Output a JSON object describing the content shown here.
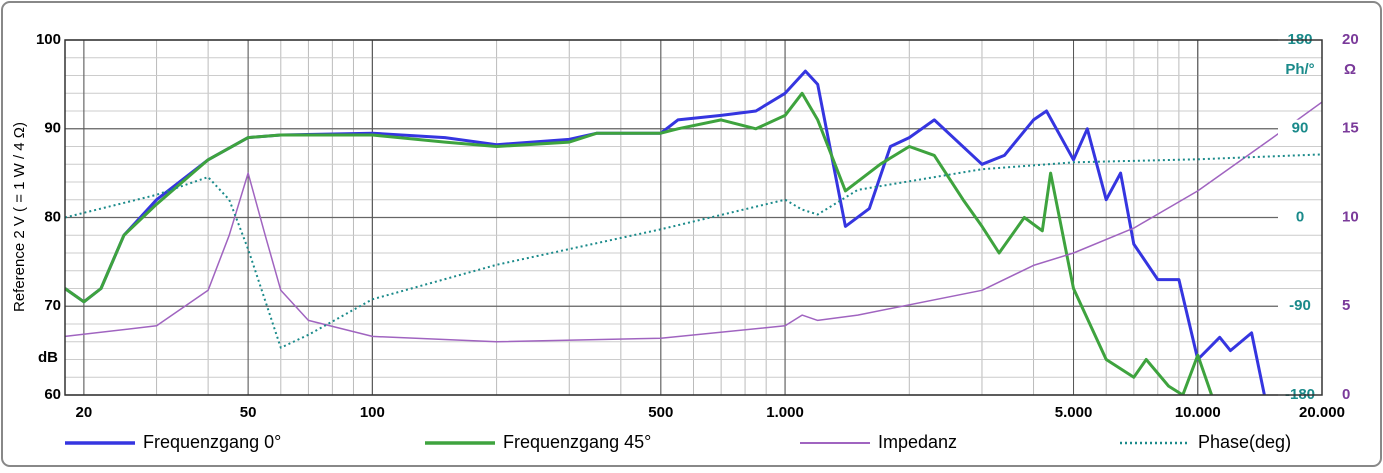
{
  "chart_data": {
    "type": "line",
    "y_label": "Reference 2 V ( = 1 W / 4 Ω)",
    "y_unit": "dB",
    "y2_unit": "Ph/°",
    "y3_unit": "Ω",
    "log_x": true,
    "grid": true,
    "xlim": [
      18,
      20000
    ],
    "xticks": [
      20,
      50,
      100,
      500,
      {
        "value": 1000,
        "label": "1.000"
      },
      {
        "value": 5000,
        "label": "5.000"
      },
      {
        "value": 10000,
        "label": "10.000"
      },
      {
        "value": 20000,
        "label": "20.000"
      }
    ],
    "ylim": [
      60,
      100
    ],
    "yticks": [
      60,
      70,
      80,
      90,
      100
    ],
    "y2lim": [
      -180,
      180
    ],
    "y2ticks": [
      -180,
      -90,
      0,
      90,
      180
    ],
    "y3lim": [
      0,
      20
    ],
    "y3ticks": [
      0,
      5,
      10,
      15,
      20
    ],
    "series": [
      {
        "name": "Frequenzgang 0°",
        "color": "#3535e0",
        "style": "solid",
        "width": 3,
        "x": [
          18,
          20,
          22,
          25,
          30,
          40,
          50,
          60,
          100,
          150,
          200,
          300,
          350,
          500,
          550,
          700,
          850,
          1000,
          1120,
          1200,
          1400,
          1600,
          1800,
          2000,
          2300,
          3000,
          3400,
          4000,
          4300,
          5000,
          5400,
          6000,
          6500,
          7000,
          8000,
          9000,
          10000,
          11300,
          12000,
          13500,
          14500
        ],
        "values": [
          72,
          70.5,
          72,
          78,
          82,
          86.5,
          89,
          89.3,
          89.5,
          89,
          88.2,
          88.8,
          89.5,
          89.5,
          91,
          91.5,
          92,
          94,
          96.5,
          95,
          79,
          81,
          88,
          89,
          91,
          86,
          87,
          91,
          92,
          86.5,
          90,
          82,
          85,
          77,
          73,
          73,
          64,
          66.5,
          65,
          67,
          60
        ]
      },
      {
        "name": "Frequenzgang 45°",
        "color": "#3ea33e",
        "style": "solid",
        "width": 3,
        "x": [
          18,
          20,
          22,
          25,
          30,
          40,
          50,
          60,
          100,
          150,
          200,
          300,
          350,
          500,
          550,
          700,
          850,
          1000,
          1100,
          1200,
          1400,
          1700,
          2000,
          2300,
          2700,
          3000,
          3300,
          3800,
          4200,
          4400,
          5000,
          6000,
          7000,
          7500,
          8500,
          9200,
          10000,
          10800
        ],
        "values": [
          72,
          70.5,
          72,
          78,
          81.5,
          86.5,
          89,
          89.3,
          89.3,
          88.5,
          88,
          88.5,
          89.5,
          89.5,
          90,
          91,
          90,
          91.5,
          94,
          91,
          83,
          86,
          88,
          87,
          82,
          79,
          76,
          80,
          78.5,
          85,
          72,
          64,
          62,
          64,
          61,
          60,
          64.5,
          60
        ]
      },
      {
        "name": "Impedanz",
        "color": "#a064c0",
        "style": "solid",
        "width": 1.5,
        "axis": "y3",
        "x": [
          18,
          30,
          40,
          45,
          50,
          55,
          60,
          70,
          100,
          200,
          500,
          1000,
          1100,
          1200,
          1500,
          3000,
          4000,
          5000,
          7000,
          10000,
          15000,
          20000
        ],
        "values": [
          3.3,
          3.9,
          5.9,
          9,
          12.5,
          9,
          5.9,
          4.2,
          3.3,
          3.0,
          3.2,
          3.9,
          4.5,
          4.2,
          4.5,
          5.9,
          7.3,
          8,
          9.4,
          11.5,
          14.4,
          16.5
        ]
      },
      {
        "name": "Phase(deg)",
        "color": "#1a8a8a",
        "style": "dotted",
        "width": 2,
        "axis": "y2",
        "x": [
          18,
          30,
          40,
          45,
          50,
          60,
          70,
          100,
          200,
          500,
          1000,
          1100,
          1200,
          1500,
          3000,
          5000,
          10000,
          20000
        ],
        "values": [
          0,
          23,
          41,
          18,
          -32,
          -132,
          -119,
          -83,
          -48,
          -12,
          18,
          8,
          3,
          28,
          49,
          56,
          59,
          64
        ]
      }
    ]
  }
}
